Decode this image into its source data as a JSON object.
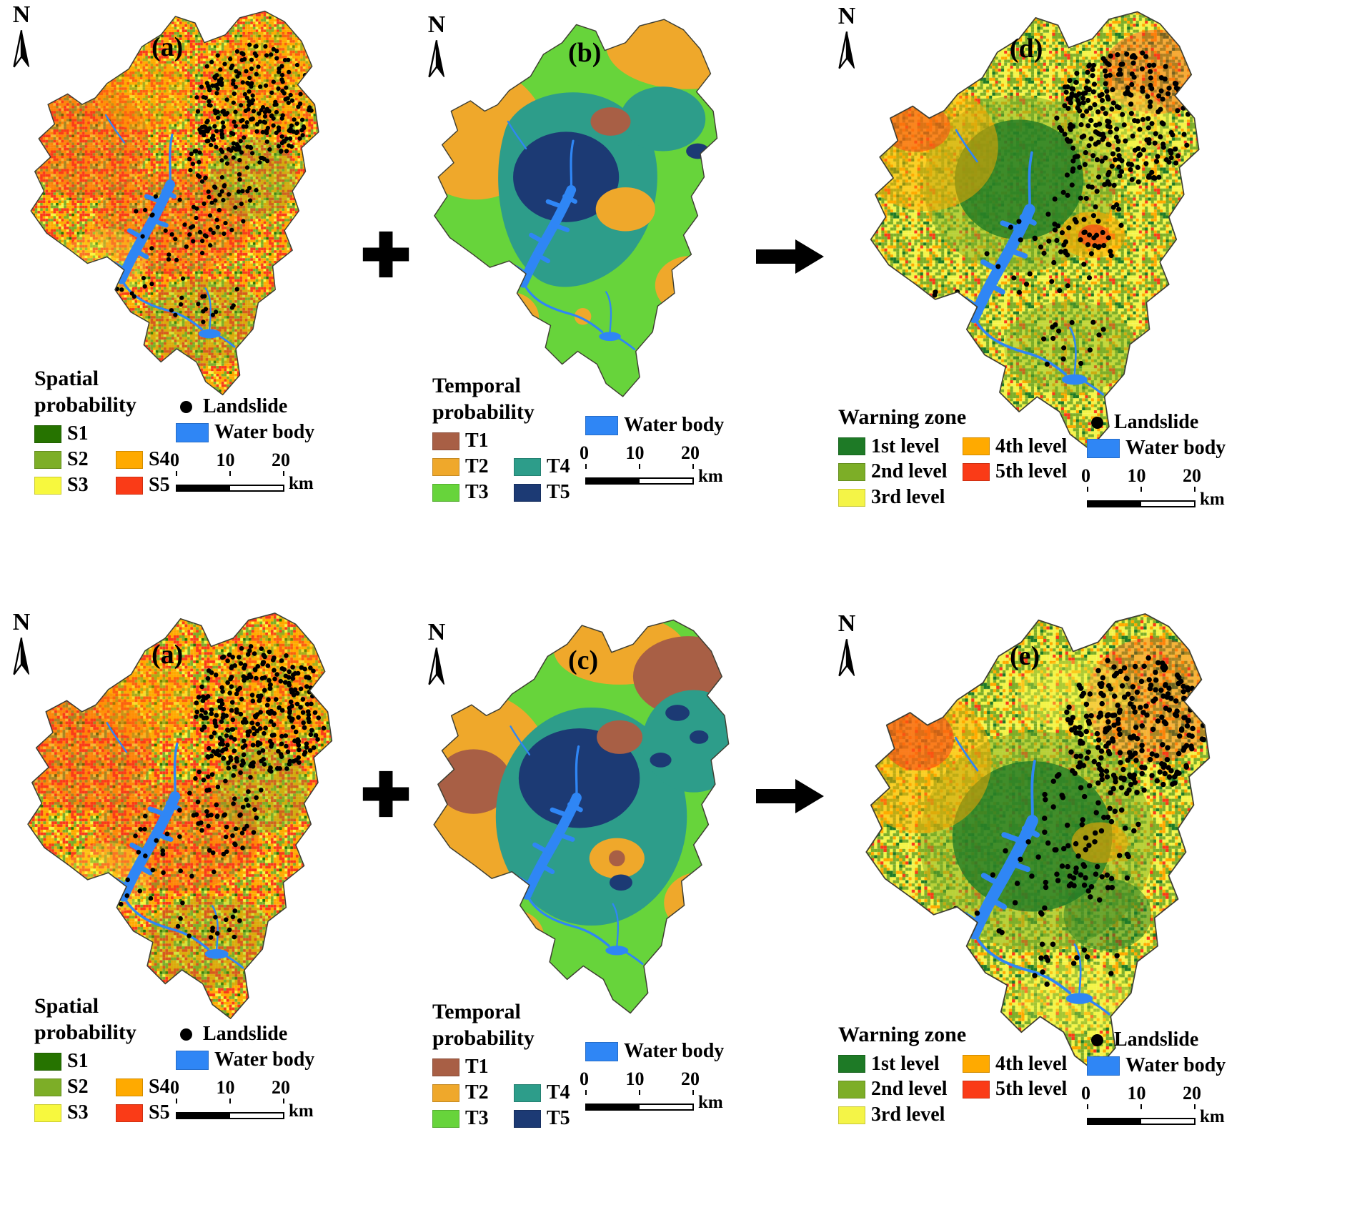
{
  "north_label": "N",
  "panel_labels": [
    "(a)",
    "(b)",
    "(d)",
    "(a)",
    "(c)",
    "(e)"
  ],
  "icons": {
    "north": "compass-north-icon",
    "plus": "plus-icon",
    "arrow_right": "arrow-right-icon",
    "landslide_marker": "dot-icon"
  },
  "palette": {
    "s1": "#267300",
    "s2": "#7dae27",
    "s3": "#f7f83e",
    "s4": "#ffaa00",
    "s5": "#fa3b17",
    "t1": "#a85f45",
    "t2": "#efa82b",
    "t3": "#67d43b",
    "t4": "#2d9d8a",
    "t5": "#1c3a74",
    "w1": "#1e7a26",
    "w2": "#7dae27",
    "w3": "#f4f447",
    "w4": "#ffaa00",
    "w5": "#fa3b17",
    "water": "#2f86f5",
    "landslide": "#000000"
  },
  "legends": {
    "spatial": {
      "title_l1": "Spatial",
      "title_l2": "probability",
      "items": [
        "S1",
        "S2",
        "S3",
        "S4",
        "S5"
      ]
    },
    "temporal": {
      "title_l1": "Temporal",
      "title_l2": "probability",
      "items": [
        "T1",
        "T2",
        "T3",
        "T4",
        "T5"
      ]
    },
    "warning": {
      "title": "Warning zone",
      "items": [
        "1st level",
        "2nd level",
        "3rd level",
        "4th level",
        "5th level"
      ]
    }
  },
  "common": {
    "landslide": "Landslide",
    "water": "Water body"
  },
  "scalebar": {
    "zero": "0",
    "ten": "10",
    "twenty": "20",
    "unit": "km"
  }
}
